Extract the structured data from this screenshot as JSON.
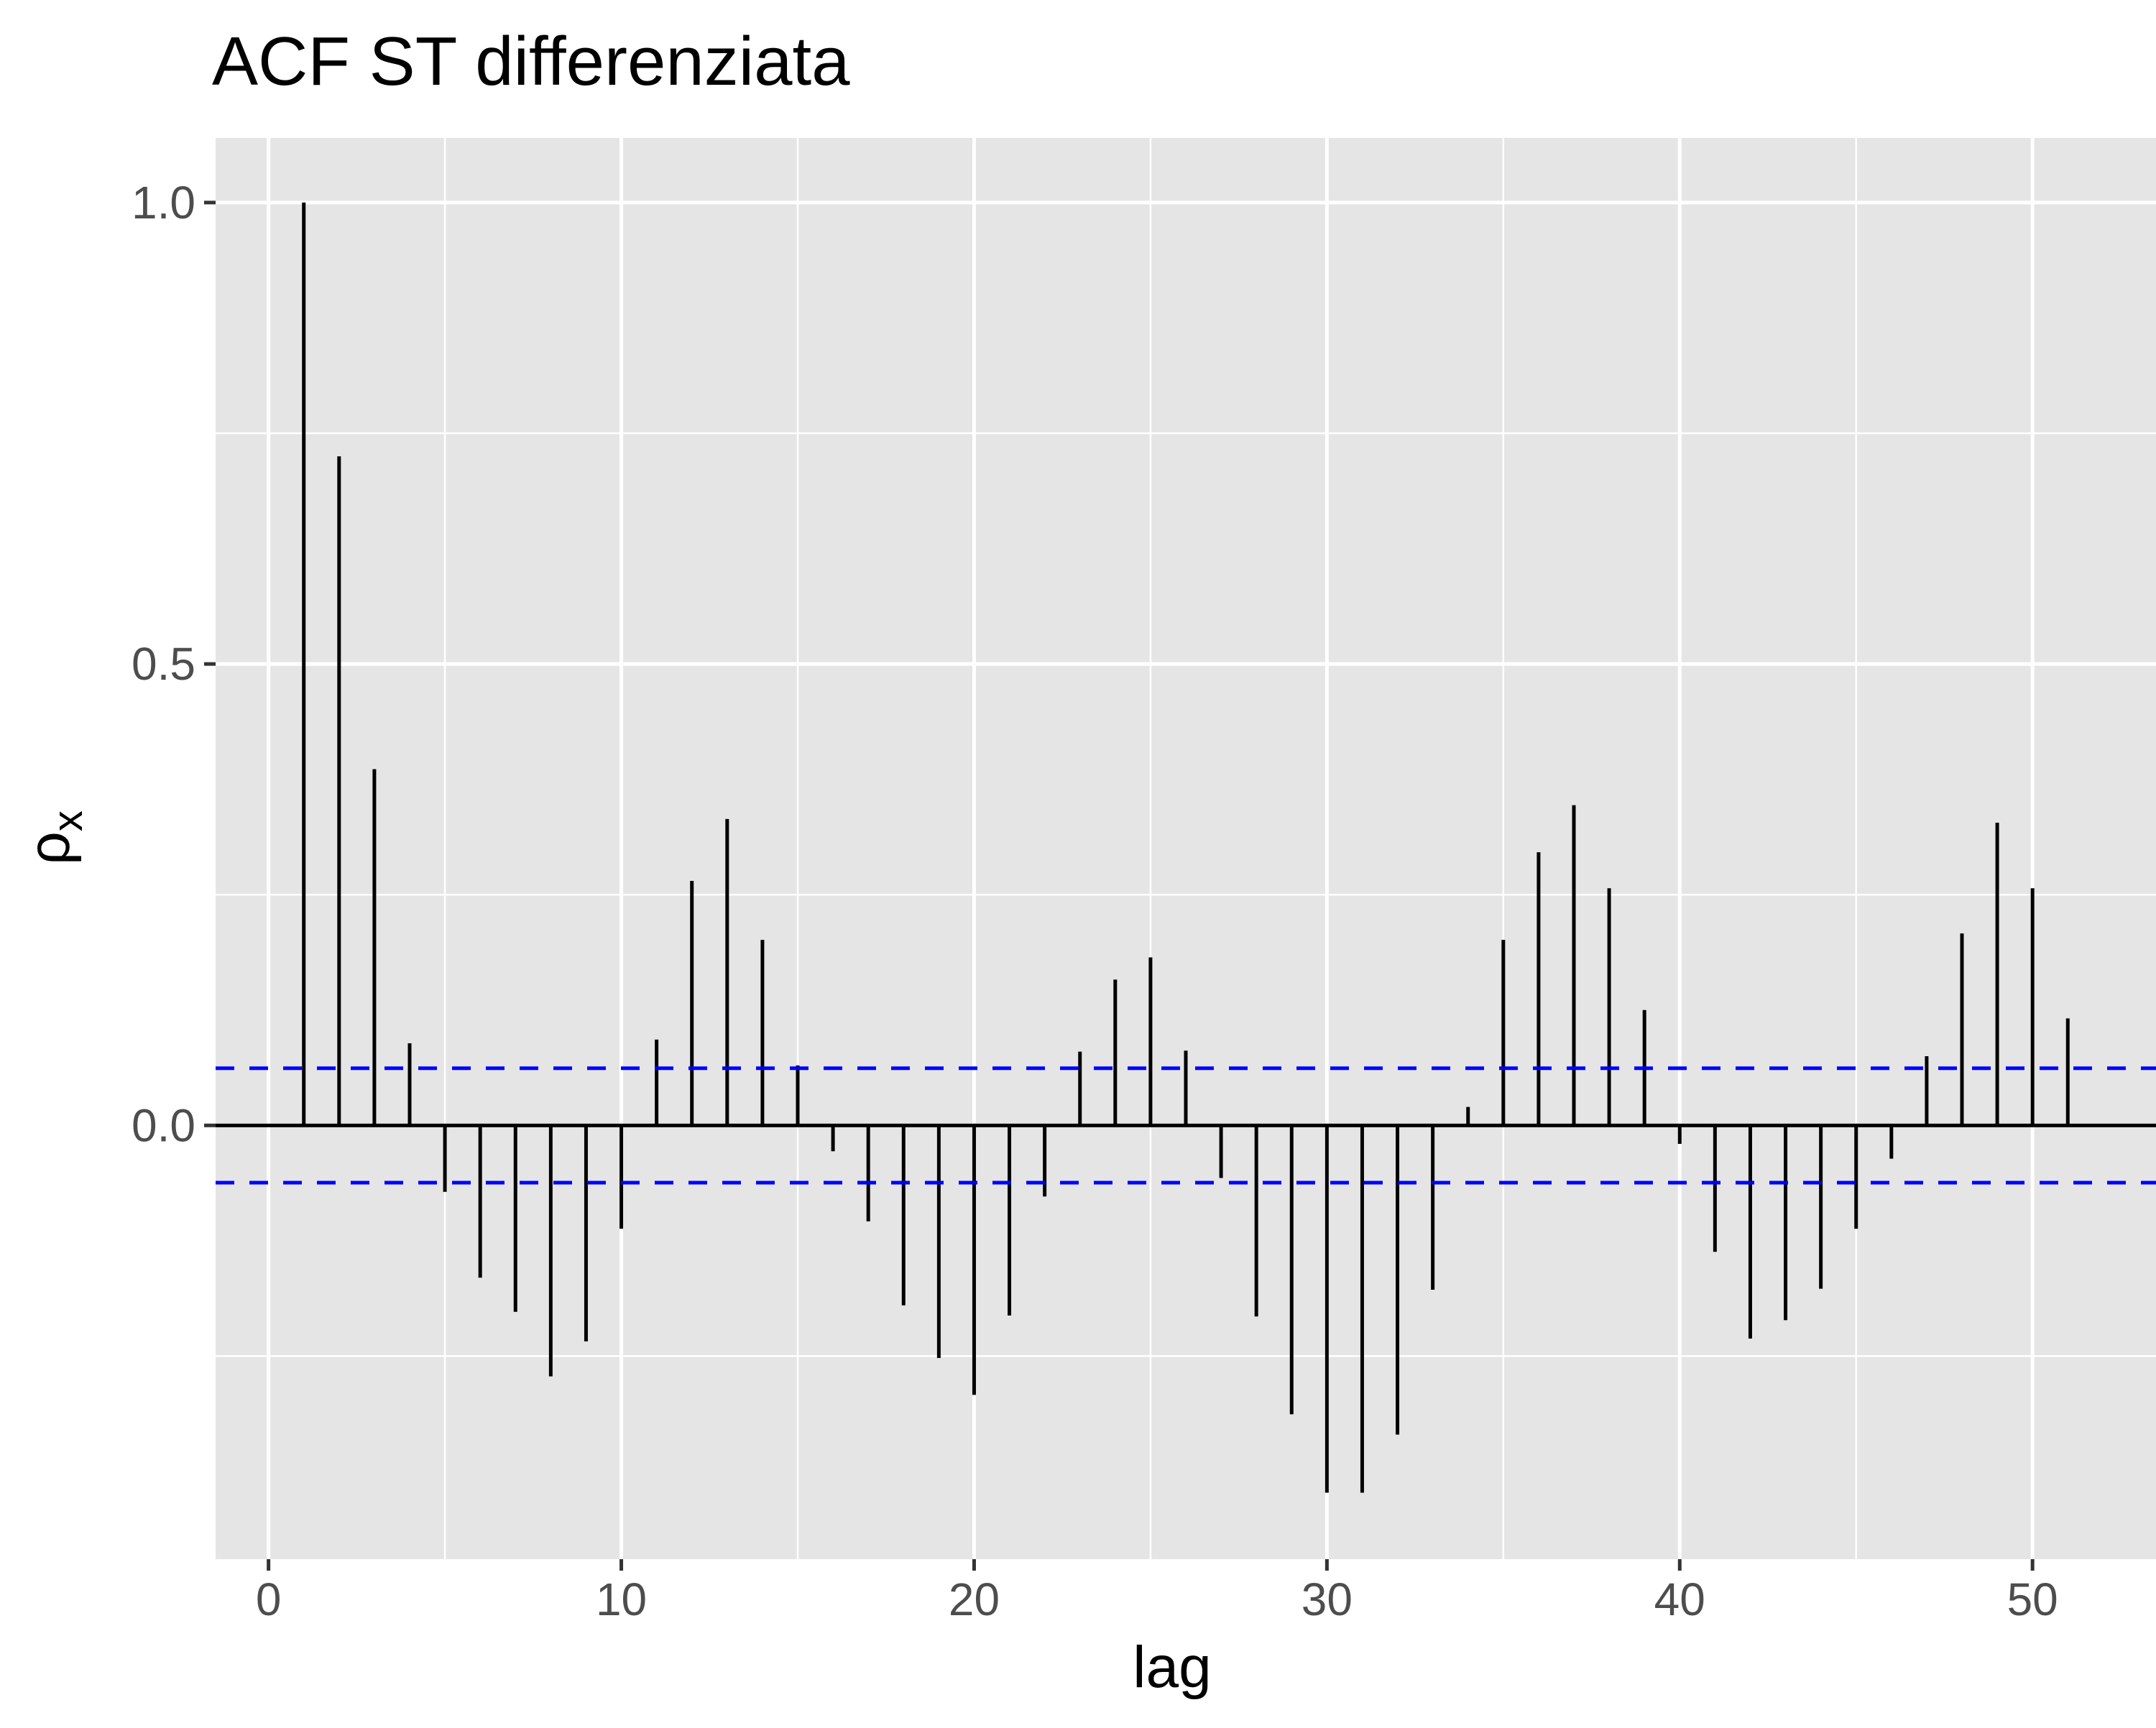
{
  "chart_data": {
    "type": "bar",
    "title": "ACF ST differenziata",
    "xlabel": "lag",
    "ylabel": "ρ",
    "ylabel_subscript": "x",
    "xlim": [
      -1.5,
      53.5
    ],
    "ylim": [
      -0.47,
      1.07
    ],
    "xticks": [
      0,
      10,
      20,
      30,
      40,
      50
    ],
    "xtick_labels": [
      "0",
      "10",
      "20",
      "30",
      "40",
      "50"
    ],
    "yticks": [
      0.0,
      0.5,
      1.0
    ],
    "ytick_labels": [
      "0.0",
      "0.5",
      "1.0"
    ],
    "grid": true,
    "confidence_band": 0.062,
    "confidence_band_color": "#0000ff",
    "panel_color": "#e5e5e5",
    "grid_color": "#ffffff",
    "lag": [
      1,
      2,
      3,
      4,
      5,
      6,
      7,
      8,
      9,
      10,
      11,
      12,
      13,
      14,
      15,
      16,
      17,
      18,
      19,
      20,
      21,
      22,
      23,
      24,
      25,
      26,
      27,
      28,
      29,
      30,
      31,
      32,
      33,
      34,
      35,
      36,
      37,
      38,
      39,
      40,
      41,
      42,
      43,
      44,
      45,
      46,
      47,
      48,
      49,
      50,
      51
    ],
    "acf": [
      1.0,
      0.725,
      0.386,
      0.089,
      -0.072,
      -0.165,
      -0.202,
      -0.272,
      -0.234,
      -0.112,
      0.093,
      0.265,
      0.332,
      0.201,
      0.065,
      -0.028,
      -0.104,
      -0.195,
      -0.252,
      -0.292,
      -0.206,
      -0.077,
      0.08,
      0.158,
      0.182,
      0.081,
      -0.057,
      -0.207,
      -0.313,
      -0.398,
      -0.398,
      -0.335,
      -0.178,
      0.02,
      0.201,
      0.296,
      0.347,
      0.257,
      0.125,
      -0.02,
      -0.137,
      -0.231,
      -0.211,
      -0.177,
      -0.112,
      -0.036,
      0.075,
      0.208,
      0.328,
      0.257,
      0.116
    ]
  }
}
